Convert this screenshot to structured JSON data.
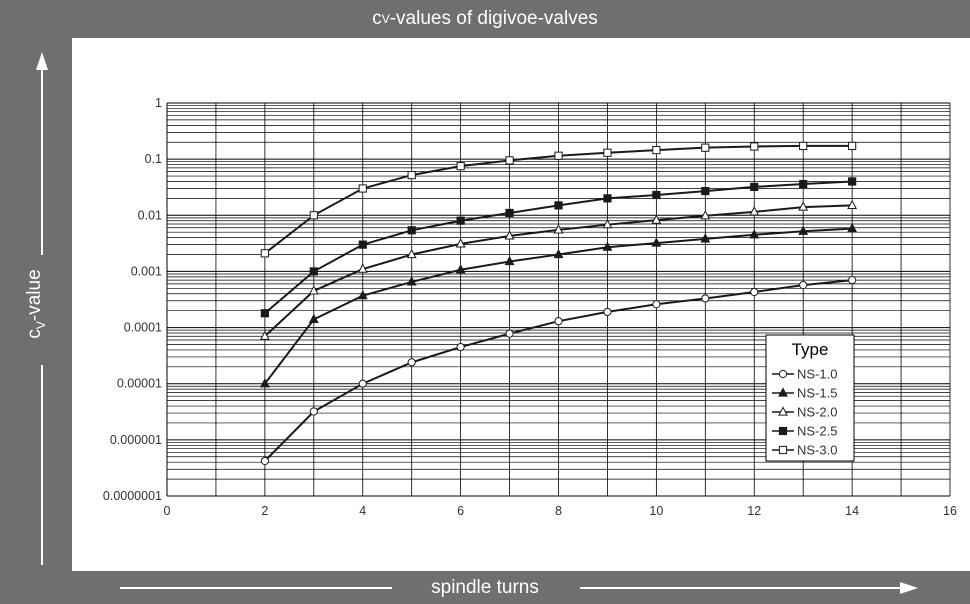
{
  "chart_data": {
    "type": "line",
    "title_prefix": "c",
    "title_sub": "V",
    "title_suffix": "-values of digivoe-valves",
    "xlabel": "spindle turns",
    "ylabel_prefix": "c",
    "ylabel_sub": "V",
    "ylabel_suffix": "-value",
    "x_scale": "linear",
    "y_scale": "log",
    "xlim": [
      0,
      16
    ],
    "ylim": [
      1e-07,
      1
    ],
    "x_ticks": [
      0,
      2,
      4,
      6,
      8,
      10,
      12,
      14,
      16
    ],
    "y_tick_labels": [
      "0.0000001",
      "0.000001",
      "0.00001",
      "0.0001",
      "0.001",
      "0.01",
      "0.1",
      "1"
    ],
    "grid": true,
    "legend_title": "Type",
    "legend_position": "bottom-right",
    "series": [
      {
        "name": "NS-1.0",
        "marker": "circle-open",
        "x": [
          2,
          3,
          4,
          5,
          6,
          7,
          8,
          9,
          10,
          11,
          12,
          13,
          14
        ],
        "y": [
          4.2e-07,
          3.2e-06,
          1e-05,
          2.4e-05,
          4.5e-05,
          7.8e-05,
          0.00013,
          0.00019,
          0.00026,
          0.00033,
          0.00043,
          0.00057,
          0.0007
        ]
      },
      {
        "name": "NS-1.5",
        "marker": "triangle-filled",
        "x": [
          2,
          3,
          4,
          5,
          6,
          7,
          8,
          9,
          10,
          11,
          12,
          13,
          14
        ],
        "y": [
          1e-05,
          0.00014,
          0.00037,
          0.00065,
          0.00107,
          0.0015,
          0.002,
          0.0027,
          0.0032,
          0.0038,
          0.0045,
          0.0052,
          0.0058
        ]
      },
      {
        "name": "NS-2.0",
        "marker": "triangle-open",
        "x": [
          2,
          3,
          4,
          5,
          6,
          7,
          8,
          9,
          10,
          11,
          12,
          13,
          14
        ],
        "y": [
          7e-05,
          0.00045,
          0.0011,
          0.002,
          0.0031,
          0.0043,
          0.0055,
          0.0068,
          0.0082,
          0.0098,
          0.0115,
          0.014,
          0.015
        ]
      },
      {
        "name": "NS-2.5",
        "marker": "square-filled",
        "x": [
          2,
          3,
          4,
          5,
          6,
          7,
          8,
          9,
          10,
          11,
          12,
          13,
          14
        ],
        "y": [
          0.00018,
          0.001,
          0.003,
          0.0054,
          0.008,
          0.011,
          0.015,
          0.02,
          0.023,
          0.027,
          0.032,
          0.036,
          0.04
        ]
      },
      {
        "name": "NS-3.0",
        "marker": "square-open",
        "x": [
          2,
          3,
          4,
          5,
          6,
          7,
          8,
          9,
          10,
          11,
          12,
          13,
          14
        ],
        "y": [
          0.0021,
          0.01,
          0.03,
          0.052,
          0.075,
          0.095,
          0.115,
          0.13,
          0.145,
          0.16,
          0.168,
          0.172,
          0.172
        ]
      }
    ],
    "colors": {
      "frame": "#6f6f6f",
      "line": "#1a1a1a",
      "grid": "#000000"
    }
  }
}
